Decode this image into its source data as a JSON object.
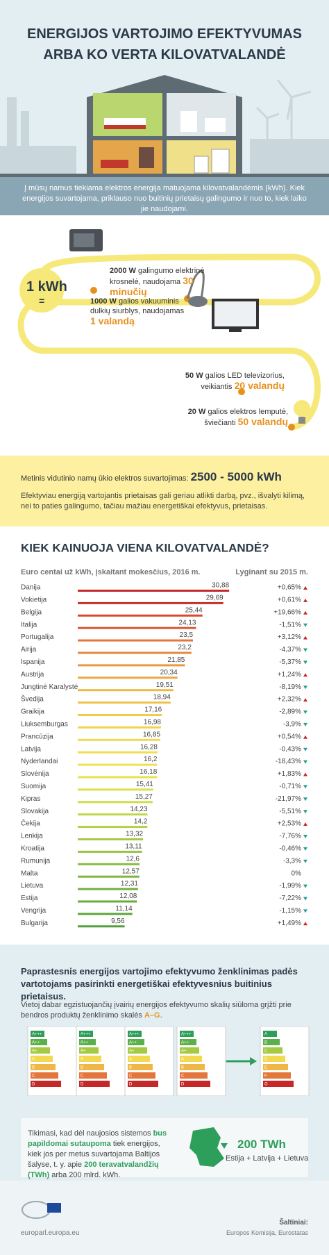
{
  "header": {
    "title_lines": [
      "ENERGIJOS VARTOJIMO EFEKTYVUMAS",
      "ARBA KO VERTA KILOVATVALANDĖ"
    ]
  },
  "intro": "Į mūsų namus tiekiama elektros energija matuojama kilovatvalandėmis (kWh). Kiek energijos suvartojama, priklauso nuo buitinių prietaisų galingumo ir nuo to, kiek laiko jie naudojami.",
  "kwh": {
    "unit": "1 kWh",
    "equals": "=",
    "items": [
      {
        "power": "2000 W",
        "text": "galingumo elektrinė krosnelė, naudojama",
        "duration": "30 minučių"
      },
      {
        "power": "1000 W",
        "text": "galios vakuuminis dulkių siurblys, naudojamas",
        "duration": "1 valandą"
      },
      {
        "power": "50 W",
        "text": "galios LED televizorius, veikiantis",
        "duration": "20 valandų"
      },
      {
        "power": "20 W",
        "text": "galios elektros lemputė, šviečianti",
        "duration": "50 valandų"
      }
    ]
  },
  "annual": {
    "label": "Metinis vidutinio namų ūkio elektros suvartojimas:",
    "value": "2500 - 5000 kWh",
    "note": "Efektyviau energiją vartojantis prietaisas gali geriau atlikti darbą, pvz., išvalyti kilimą, nei to paties galingumo, tačiau mažiau energetiškai efektyvus, prietaisas."
  },
  "chart_data": {
    "type": "hbar",
    "title": "KIEK KAINUOJA VIENA KILOVATVALANDĖ?",
    "subtitle": "Euro centai už kWh, įskaitant mokesčius, 2016 m.",
    "comparison_title": "Lyginant su 2015 m.",
    "categories": [
      "Danija",
      "Vokietija",
      "Belgija",
      "Italija",
      "Portugalija",
      "Airija",
      "Ispanija",
      "Austrija",
      "Jungtinė Karalystė",
      "Švedija",
      "Graikija",
      "Liuksemburgas",
      "Prancūzija",
      "Latvija",
      "Nyderlandai",
      "Slovėnija",
      "Suomija",
      "Kipras",
      "Slovakija",
      "Čekija",
      "Lenkija",
      "Kroatija",
      "Rumunija",
      "Malta",
      "Lietuva",
      "Estija",
      "Vengrija",
      "Bulgarija"
    ],
    "values": [
      30.88,
      29.69,
      25.44,
      24.13,
      23.5,
      23.2,
      21.85,
      20.34,
      19.51,
      18.94,
      17.16,
      16.98,
      16.85,
      16.28,
      16.2,
      16.18,
      15.41,
      15.27,
      14.23,
      14.2,
      13.32,
      13.11,
      12.6,
      12.57,
      12.31,
      12.08,
      11.14,
      9.56
    ],
    "value_labels": [
      "30,88",
      "29,69",
      "25,44",
      "24,13",
      "23,5",
      "23,2",
      "21,85",
      "20,34",
      "19,51",
      "18,94",
      "17,16",
      "16,98",
      "16,85",
      "16,28",
      "16,2",
      "16,18",
      "15,41",
      "15,27",
      "14,23",
      "14,2",
      "13,32",
      "13,11",
      "12,6",
      "12,57",
      "12,31",
      "12,08",
      "11,14",
      "9,56"
    ],
    "changes": [
      "+0,65%",
      "+0,61%",
      "+19,66%",
      "-1,51%",
      "+3,12%",
      "-4,37%",
      "-5,37%",
      "+1,24%",
      "-8,19%",
      "+2,32%",
      "-2,89%",
      "-3,9%",
      "+0,54%",
      "-0,43%",
      "-18,43%",
      "+1,83%",
      "-0,71%",
      "-21,97%",
      "-5,51%",
      "+2,53%",
      "-7,76%",
      "-0,46%",
      "-3,3%",
      "0%",
      "-1,99%",
      "-7,22%",
      "-1,15%",
      "+1,49%"
    ],
    "colors": [
      "#c62828",
      "#c8302a",
      "#d84a2e",
      "#dc5a30",
      "#e3763a",
      "#e58a3e",
      "#e89a40",
      "#eba843",
      "#efb846",
      "#f0c24a",
      "#f1cc4c",
      "#f2d34e",
      "#f2d94f",
      "#f1de50",
      "#ede24f",
      "#e6e34e",
      "#dae14c",
      "#cfdd4a",
      "#c0d748",
      "#b3d146",
      "#a4ca44",
      "#95c342",
      "#88bd40",
      "#7db73e",
      "#72b13d",
      "#67ab3b",
      "#5da53a",
      "#529f39"
    ],
    "xlim": [
      0,
      31
    ]
  },
  "labeling": {
    "heading": "Paprastesnis energijos vartojimo efektyvumo ženklinimas padės vartotojams pasirinkti energetiškai efektyvesnius buitinius prietaisus.",
    "text": "Vietoj dabar egzistuojančių įvairių energijos efektyvumo skalių siūloma grįžti prie bendros produktų ženklinimo skalės",
    "scale": "A–G",
    "period": ".",
    "old_classes": [
      "A+++",
      "A++",
      "A+",
      "A",
      "B",
      "C",
      "D"
    ],
    "new_classes": [
      "A",
      "B",
      "C",
      "D",
      "E",
      "F",
      "G"
    ],
    "savings": {
      "t1": "Tikimasi, kad dėl naujosios sistemos",
      "b1": "bus papildomai sutaupoma",
      "t2": "tiek energijos, kiek jos per metus suvartojama Baltijos šalyse, t. y. apie",
      "b2": "200 teravatvalandžių (TWh)",
      "t3": "arba 200 mlrd. kWh."
    },
    "map_value": "200 TWh",
    "map_caption": "Estija + Latvija + Lietuva"
  },
  "footer": {
    "site": "europarl.europa.eu",
    "sources_title": "Šaltiniai:",
    "sources": "Europos Komisija, Eurostatas"
  }
}
